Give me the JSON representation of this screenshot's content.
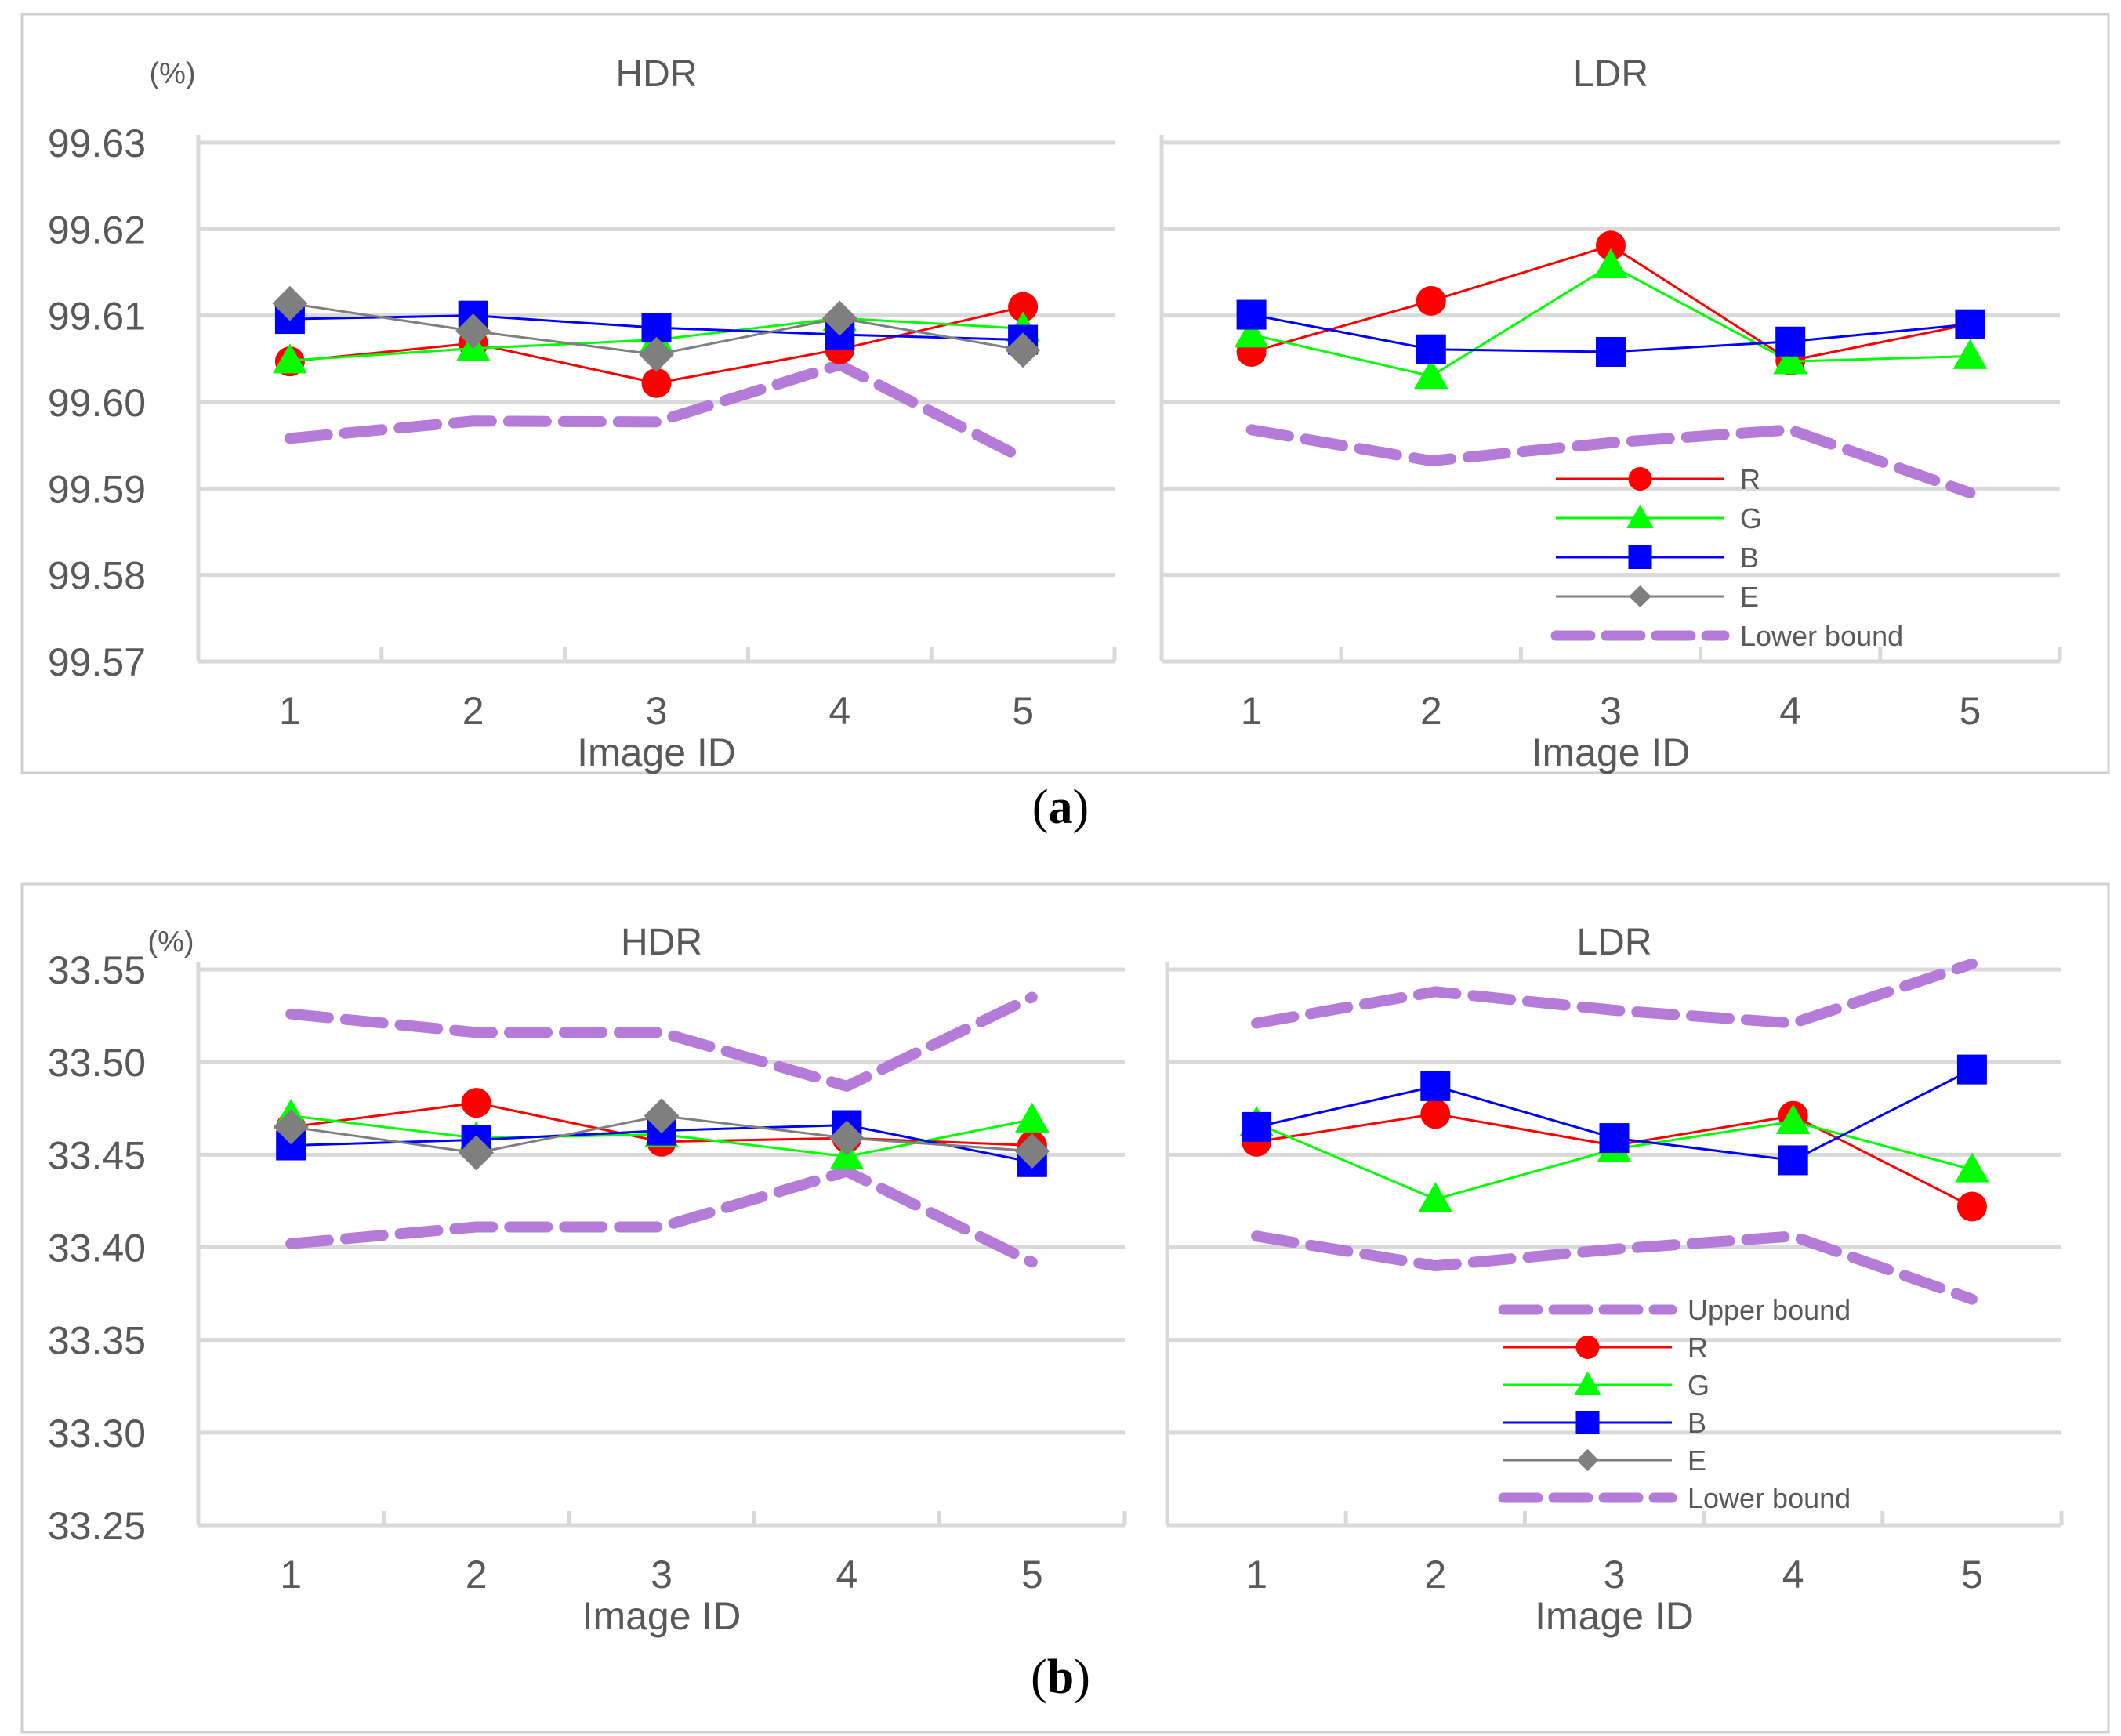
{
  "colors": {
    "R": "#ff0000",
    "G": "#00ff00",
    "B": "#0000ff",
    "E": "#7f7f7f",
    "bound": "#b57bd9",
    "grid": "#d9d9d9",
    "text": "#595959"
  },
  "icons": {
    "R": "circle-marker",
    "G": "triangle-marker",
    "B": "square-marker",
    "E": "diamond-marker",
    "bound": "dashed-line"
  },
  "chart_data": [
    {
      "caption": "(a)",
      "type": "line",
      "unit": "(%)",
      "ylim": [
        99.57,
        99.63
      ],
      "yticks": [
        "99.57",
        "99.58",
        "99.59",
        "99.60",
        "99.61",
        "99.62",
        "99.63"
      ],
      "xlabel": "Image ID",
      "panels": [
        {
          "title": "HDR",
          "categories": [
            "1",
            "2",
            "3",
            "4",
            "5"
          ],
          "series": [
            {
              "name": "R",
              "values": [
                99.6047,
                99.6068,
                99.6022,
                99.6061,
                99.611
              ]
            },
            {
              "name": "G",
              "values": [
                99.6048,
                99.6062,
                99.6072,
                99.6097,
                99.6085
              ]
            },
            {
              "name": "B",
              "values": [
                99.6096,
                99.61,
                99.6086,
                99.6078,
                99.6072
              ]
            },
            {
              "name": "E",
              "values": [
                99.6114,
                99.6082,
                99.6055,
                99.6097,
                99.606
              ]
            },
            {
              "name": "Lower bound",
              "values": [
                99.5958,
                99.5978,
                99.5977,
                99.6043,
                99.5935
              ]
            }
          ]
        },
        {
          "title": "LDR",
          "categories": [
            "1",
            "2",
            "3",
            "4",
            "5"
          ],
          "legend_position": "bottom-right",
          "legend": [
            "R",
            "G",
            "B",
            "E",
            "Lower bound"
          ],
          "series": [
            {
              "name": "R",
              "values": [
                99.6058,
                99.6117,
                99.6181,
                99.6048,
                99.609
              ]
            },
            {
              "name": "G",
              "values": [
                99.6078,
                99.603,
                99.6158,
                99.6047,
                99.6053
              ]
            },
            {
              "name": "B",
              "values": [
                99.6101,
                99.6061,
                99.6058,
                99.607,
                99.609
              ]
            },
            {
              "name": "Lower bound",
              "values": [
                99.5968,
                99.5932,
                99.5953,
                99.5968,
                99.5895
              ]
            }
          ]
        }
      ]
    },
    {
      "caption": "(b)",
      "type": "line",
      "unit": "(%)",
      "ylim": [
        33.25,
        33.55
      ],
      "yticks": [
        "33.25",
        "33.30",
        "33.35",
        "33.40",
        "33.45",
        "33.50",
        "33.55"
      ],
      "xlabel": "Image ID",
      "panels": [
        {
          "title": "HDR",
          "categories": [
            "1",
            "2",
            "3",
            "4",
            "5"
          ],
          "series": [
            {
              "name": "R",
              "values": [
                33.465,
                33.478,
                33.457,
                33.459,
                33.455
              ]
            },
            {
              "name": "G",
              "values": [
                33.471,
                33.459,
                33.461,
                33.449,
                33.469
              ]
            },
            {
              "name": "B",
              "values": [
                33.455,
                33.458,
                33.463,
                33.466,
                33.446
              ]
            },
            {
              "name": "E",
              "values": [
                33.465,
                33.451,
                33.471,
                33.459,
                33.452
              ]
            },
            {
              "name": "Upper bound",
              "values": [
                33.526,
                33.516,
                33.516,
                33.487,
                33.535
              ]
            },
            {
              "name": "Lower bound",
              "values": [
                33.402,
                33.411,
                33.411,
                33.441,
                33.392
              ]
            }
          ]
        },
        {
          "title": "LDR",
          "categories": [
            "1",
            "2",
            "3",
            "4",
            "5"
          ],
          "legend_position": "bottom-right",
          "legend": [
            "Upper bound",
            "R",
            "G",
            "B",
            "E",
            "Lower bound"
          ],
          "series": [
            {
              "name": "R",
              "values": [
                33.457,
                33.472,
                33.455,
                33.471,
                33.422
              ]
            },
            {
              "name": "G",
              "values": [
                33.467,
                33.426,
                33.453,
                33.468,
                33.442
              ]
            },
            {
              "name": "B",
              "values": [
                33.465,
                33.487,
                33.459,
                33.447,
                33.496
              ]
            },
            {
              "name": "Upper bound",
              "values": [
                33.521,
                33.538,
                33.528,
                33.521,
                33.553
              ]
            },
            {
              "name": "Lower bound",
              "values": [
                33.406,
                33.39,
                33.399,
                33.406,
                33.372
              ]
            }
          ]
        }
      ]
    }
  ]
}
